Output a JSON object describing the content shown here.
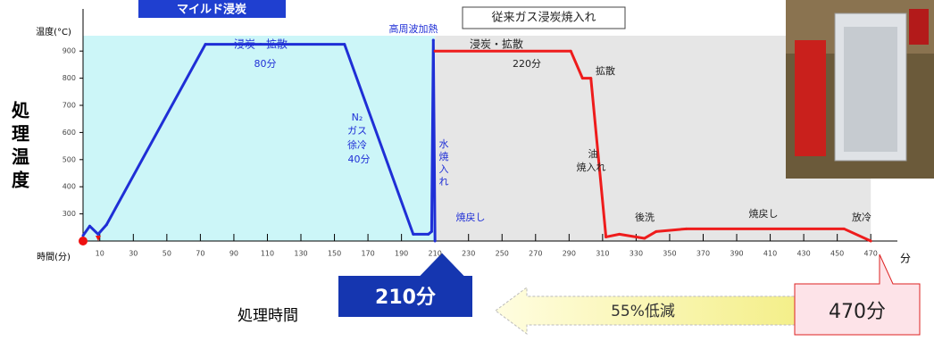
{
  "chart_data": {
    "type": "line",
    "title": "マイルド浸炭",
    "subtitle": "従来ガス浸炭焼入れ",
    "y_label": "処理温度",
    "y_unit": "温度(°C)",
    "x_unit": "時間(分)",
    "x_unit_end": "分",
    "x_label": "処理時間",
    "ylim": [
      200,
      950
    ],
    "yticks": [
      300,
      400,
      500,
      600,
      700,
      800,
      900
    ],
    "xlim": [
      0,
      500
    ],
    "xticks": [
      10,
      30,
      50,
      70,
      90,
      110,
      130,
      150,
      170,
      190,
      210,
      230,
      250,
      270,
      290,
      310,
      330,
      350,
      370,
      390,
      410,
      430,
      450,
      470
    ],
    "series": [
      {
        "name": "マイルド浸炭",
        "color": "#1f2fd6",
        "x": [
          0,
          4,
          9,
          14,
          73,
          156,
          197,
          206,
          208,
          209,
          210
        ],
        "values": [
          220,
          255,
          225,
          260,
          925,
          925,
          225,
          225,
          235,
          940,
          200
        ]
      },
      {
        "name": "従来ガス浸炭焼入れ",
        "color": "#ee1c1c",
        "x": [
          210,
          291,
          298,
          303,
          312,
          320,
          335,
          342,
          360,
          454,
          470
        ],
        "values": [
          900,
          900,
          800,
          800,
          215,
          225,
          210,
          235,
          245,
          245,
          200
        ]
      }
    ],
    "annotations": [
      "高周波加熱",
      "浸炭・拡散",
      "80分",
      "N₂",
      "ガス",
      "徐冷",
      "40分",
      "水",
      "焼",
      "入",
      "れ",
      "焼戻し",
      "浸炭・拡散",
      "220分",
      "拡散",
      "油",
      "焼入れ",
      "後洗",
      "焼戻し",
      "放冷"
    ],
    "callouts": {
      "mild": "210分",
      "reduction": "55%低減",
      "conventional": "470分"
    }
  }
}
